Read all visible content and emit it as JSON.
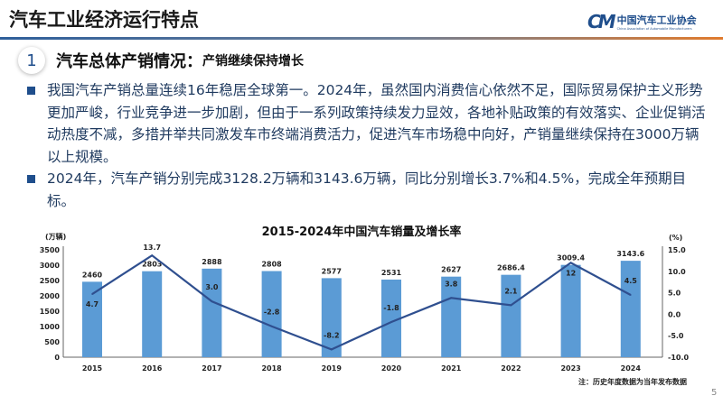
{
  "header": {
    "title": "汽车工业经济运行特点",
    "logo_cn": "中国汽车工业协会",
    "logo_en": "China Association of Automobile Manufacturers"
  },
  "section": {
    "number": "1",
    "heading": "汽车总体产销情况：",
    "subheading": "产销继续保持增长"
  },
  "bullets": [
    "我国汽车产销总量连续16年稳居全球第一。2024年，虽然国内消费信心依然不足，国际贸易保护主义形势更加严峻，行业竞争进一步加剧，但由于一系列政策持续发力显效，各地补贴政策的有效落实、企业促销活动热度不减，多措并举共同激发车市终端消费活力，促进汽车市场稳中向好，产销量继续保持在3000万辆以上规模。",
    "2024年，汽车产销分别完成3128.2万辆和3143.6万辆，同比分别增长3.7%和4.5%，完成全年预期目标。"
  ],
  "chart_data": {
    "type": "bar+line",
    "title": "2015-2024年中国汽车销量及增长率",
    "categories": [
      "2015",
      "2016",
      "2017",
      "2018",
      "2019",
      "2020",
      "2021",
      "2022",
      "2023",
      "2024"
    ],
    "series": [
      {
        "kind": "bar",
        "axis": "left",
        "values": [
          2460,
          2803,
          2888,
          2808,
          2577,
          2531,
          2627,
          2686.4,
          3009.4,
          3143.6
        ],
        "labels": [
          "2460",
          "2803",
          "2888",
          "2808",
          "2577",
          "2531",
          "2627",
          "2686.4",
          "3009.4",
          "3143.6"
        ],
        "color": "#5b9bd5"
      },
      {
        "kind": "line",
        "axis": "right",
        "values": [
          4.7,
          13.7,
          3.0,
          -2.8,
          -8.2,
          -1.8,
          3.8,
          2.1,
          12,
          4.5
        ],
        "labels": [
          "4.7",
          "13.7",
          "3.0",
          "-2.8",
          "-8.2",
          "-1.8",
          "3.8",
          "2.1",
          "12",
          "4.5"
        ],
        "color": "#2f4f8f"
      }
    ],
    "ylabel_left": "(万辆)",
    "ylim_left": [
      0,
      3500
    ],
    "yticks_left": [
      "0",
      "500",
      "1000",
      "1500",
      "2000",
      "2500",
      "3000",
      "3500"
    ],
    "ylabel_right": "(%)",
    "ylim_right": [
      -10,
      15
    ],
    "yticks_right": [
      "-10.0",
      "-5.0",
      "0.0",
      "5.0",
      "10.0",
      "15.0"
    ],
    "grid": false,
    "note": "注：历史年度数据为当年发布数据"
  },
  "page_number": "5"
}
